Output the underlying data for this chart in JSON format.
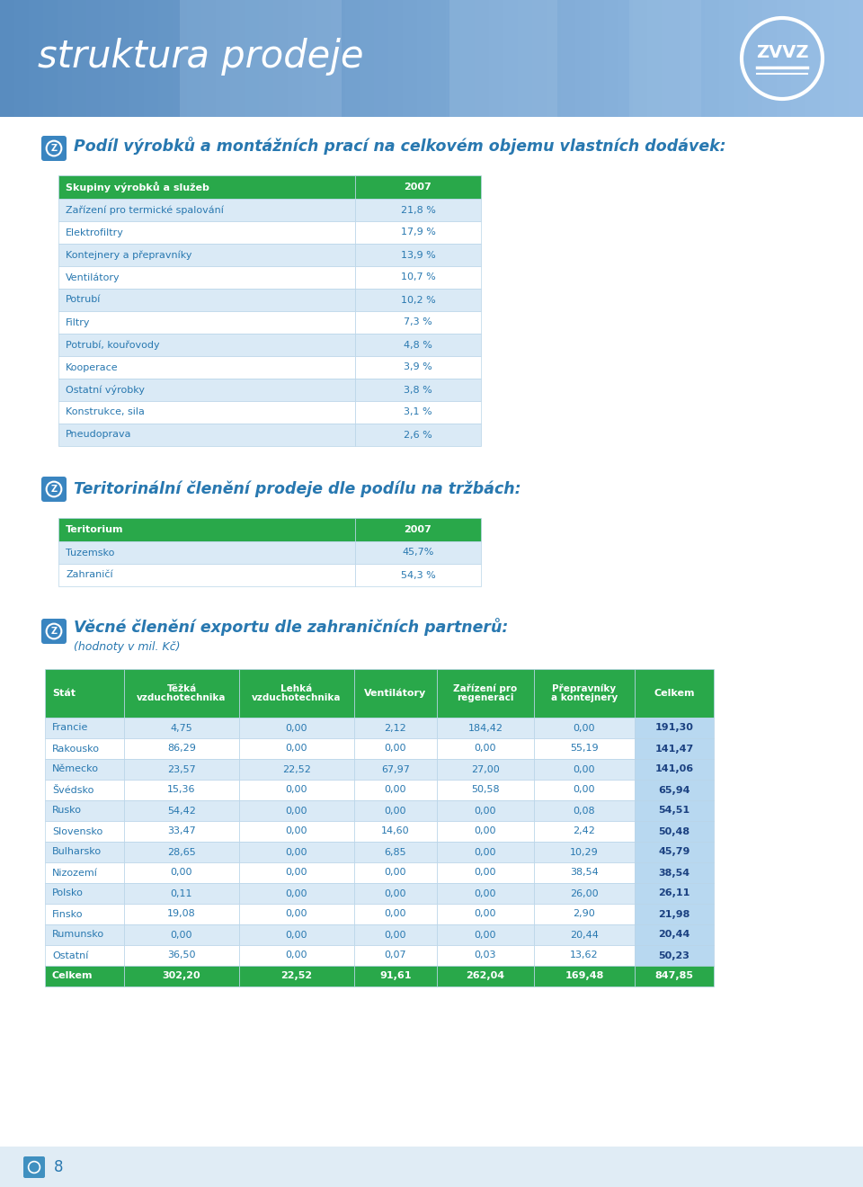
{
  "header_title": "struktura prodeje",
  "section1_title": "Podíl výrobků a montážních prací na celkovém objemu vlastních dodávek:",
  "table1_header": [
    "Skupiny výrobků a služeb",
    "2007"
  ],
  "table1_rows": [
    [
      "Zařízení pro termické spalování",
      "21,8 %"
    ],
    [
      "Elektrofiltry",
      "17,9 %"
    ],
    [
      "Kontejnery a přepravníky",
      "13,9 %"
    ],
    [
      "Ventilátory",
      "10,7 %"
    ],
    [
      "Potrubí",
      "10,2 %"
    ],
    [
      "Filtry",
      "7,3 %"
    ],
    [
      "Potrubí, kouřovody",
      "4,8 %"
    ],
    [
      "Kooperace",
      "3,9 %"
    ],
    [
      "Ostatní výrobky",
      "3,8 %"
    ],
    [
      "Konstrukce, sila",
      "3,1 %"
    ],
    [
      "Pneudoprava",
      "2,6 %"
    ]
  ],
  "section2_title": "Teritorinální členění prodeje dle podílu na tržbách:",
  "table2_header": [
    "Teritorium",
    "2007"
  ],
  "table2_rows": [
    [
      "Tuzemsko",
      "45,7%"
    ],
    [
      "Zahraničí",
      "54,3 %"
    ]
  ],
  "section3_title": "Věcné členění exportu dle zahraničních partnerů:",
  "section3_subtitle": "(hodnoty v mil. Kč)",
  "table3_header": [
    "Stát",
    "Těžká\nvzduchotechnika",
    "Lehká\nvzduchotechnika",
    "Ventilátory",
    "Zařízení pro\nregeneraci",
    "Přepravníky\na kontejnery",
    "Celkem"
  ],
  "table3_rows": [
    [
      "Francie",
      "4,75",
      "0,00",
      "2,12",
      "184,42",
      "0,00",
      "191,30"
    ],
    [
      "Rakousko",
      "86,29",
      "0,00",
      "0,00",
      "0,00",
      "55,19",
      "141,47"
    ],
    [
      "Německo",
      "23,57",
      "22,52",
      "67,97",
      "27,00",
      "0,00",
      "141,06"
    ],
    [
      "Švédsko",
      "15,36",
      "0,00",
      "0,00",
      "50,58",
      "0,00",
      "65,94"
    ],
    [
      "Rusko",
      "54,42",
      "0,00",
      "0,00",
      "0,00",
      "0,08",
      "54,51"
    ],
    [
      "Slovensko",
      "33,47",
      "0,00",
      "14,60",
      "0,00",
      "2,42",
      "50,48"
    ],
    [
      "Bulharsko",
      "28,65",
      "0,00",
      "6,85",
      "0,00",
      "10,29",
      "45,79"
    ],
    [
      "Nizozemí",
      "0,00",
      "0,00",
      "0,00",
      "0,00",
      "38,54",
      "38,54"
    ],
    [
      "Polsko",
      "0,11",
      "0,00",
      "0,00",
      "0,00",
      "26,00",
      "26,11"
    ],
    [
      "Finsko",
      "19,08",
      "0,00",
      "0,00",
      "0,00",
      "2,90",
      "21,98"
    ],
    [
      "Rumunsko",
      "0,00",
      "0,00",
      "0,00",
      "0,00",
      "20,44",
      "20,44"
    ],
    [
      "Ostatní",
      "36,50",
      "0,00",
      "0,07",
      "0,03",
      "13,62",
      "50,23"
    ],
    [
      "Celkem",
      "302,20",
      "22,52",
      "91,61",
      "262,04",
      "169,48",
      "847,85"
    ]
  ],
  "green_header_bg": "#29a84a",
  "green_header_fg": "#ffffff",
  "blue_row_bg": "#daeaf6",
  "white_row_bg": "#ffffff",
  "blue_text": "#2878b0",
  "dark_blue_text": "#1a4f80",
  "table_border": "#b8d4e8",
  "section_title_color": "#2878b0",
  "celkem_row_bg": "#29a84a",
  "celkem_row_fg": "#ffffff",
  "celkem_col_bg": "#b8d8f0",
  "celkem_col_fg": "#1a4080",
  "footer_bg": "#e0ecf5",
  "page_bg": "#f0f4f8"
}
